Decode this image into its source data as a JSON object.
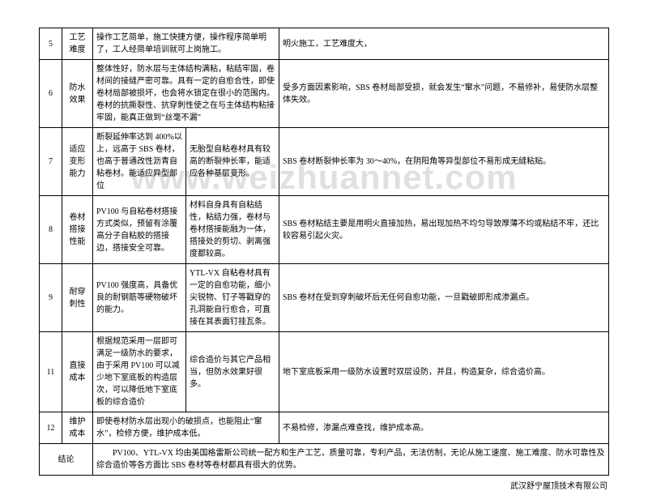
{
  "watermark": "www.weizhuannet.com",
  "footer": "武汉舒宁屋顶技术有限公司",
  "rows": [
    {
      "idx": "5",
      "label": "工艺难度",
      "cells": [
        "操作工艺简单，施工快捷方便，操作程序简单明了，工人经简单培训就可上岗施工。",
        "",
        "明火施工，工艺难度大，"
      ],
      "span12": true
    },
    {
      "idx": "6",
      "label": "防水效果",
      "cells": [
        "整体性好，防水层与主体结构满粘，粘结牢固，卷材间的接缝严密可靠。具有一定的自愈合性，即使卷材局部被损坏，也会将水锁定在很小的范围内。卷材的抗撕裂性、抗穿刺性使之在与主体结构粘接牢固，能真正做到“丝毫不漏”",
        "",
        "受多方面因素影响，SBS 卷材局部受损，就会发生“窜水”问题，不易修补，易使防水层整体失效。"
      ],
      "span12": true
    },
    {
      "idx": "7",
      "label": "适应变形能力",
      "cells": [
        "断裂延伸率达到 400%以上，远高于 SBS 卷材，也高于普通改性沥青自粘卷材。能适应异型部位",
        "无胎型自粘卷材具有较高的断裂伸长率，能适应各种基层变形。",
        "SBS 卷材断裂伸长率为 30～40%，在阴阳角等异型部位不易形成无缝粘贴。"
      ]
    },
    {
      "idx": "8",
      "label": "卷材搭接性能",
      "cells": [
        "PV100 与自粘卷材搭接方式类似，预留有涂覆高分子自粘胶的搭接边，搭接安全可靠。",
        "材料自身具有自粘结性，粘结力强，卷材与卷材搭接能融为一体，搭接处的剪切、剥离强度都较高。",
        "SBS 卷材粘结主要是用明火直接加热，易出现加热不均匀导致厚薄不均或粘结不牢，还比较容易引起火灾。"
      ]
    },
    {
      "idx": "9",
      "label": "耐穿刺性",
      "cells": [
        "PV100 强度高，具备优良的耐钢筋等硬物破坏的能力。",
        "YTL-VX 自粘卷材具有一定的自愈功能，细小尖锐物、钉子等戳穿的孔洞能自行愈合，可直接在其表面钉挂瓦条。",
        "SBS 卷材在受到穿刺破坏后无任何自愈功能，一旦戳破即形成渗漏点。"
      ]
    },
    {
      "idx": "11",
      "label": "直接成本",
      "cells": [
        "根据规范采用一层即可满足一级防水的要求，由于采用 PV100 可以减少地下室底板的构造层次，可以降低地下室底板的综合造价",
        "综合造价与其它产品相当，但防水效果好很多。",
        "地下室底板采用一级防水设置时双层设防，并且，构造复杂，综合造价高。"
      ]
    },
    {
      "idx": "12",
      "label": "维护成本",
      "cells": [
        "即使卷材防水层出现小的破损点，也能阻止“窜水”，检修方便，维护成本低。",
        "",
        "不易检修，渗漏点难查找，维护成本高。"
      ],
      "span12": true
    }
  ],
  "conclusion": {
    "label": "结论",
    "text": "　　PV100、YTL-VX 均由美国格雷斯公司统一配方和生产工艺，质量可靠，专利产品，无法仿制，无论从施工速度、施工难度、防水可靠性及综合造价等各方面比 SBS 卷材等卷材都具有很大的优势。"
  }
}
